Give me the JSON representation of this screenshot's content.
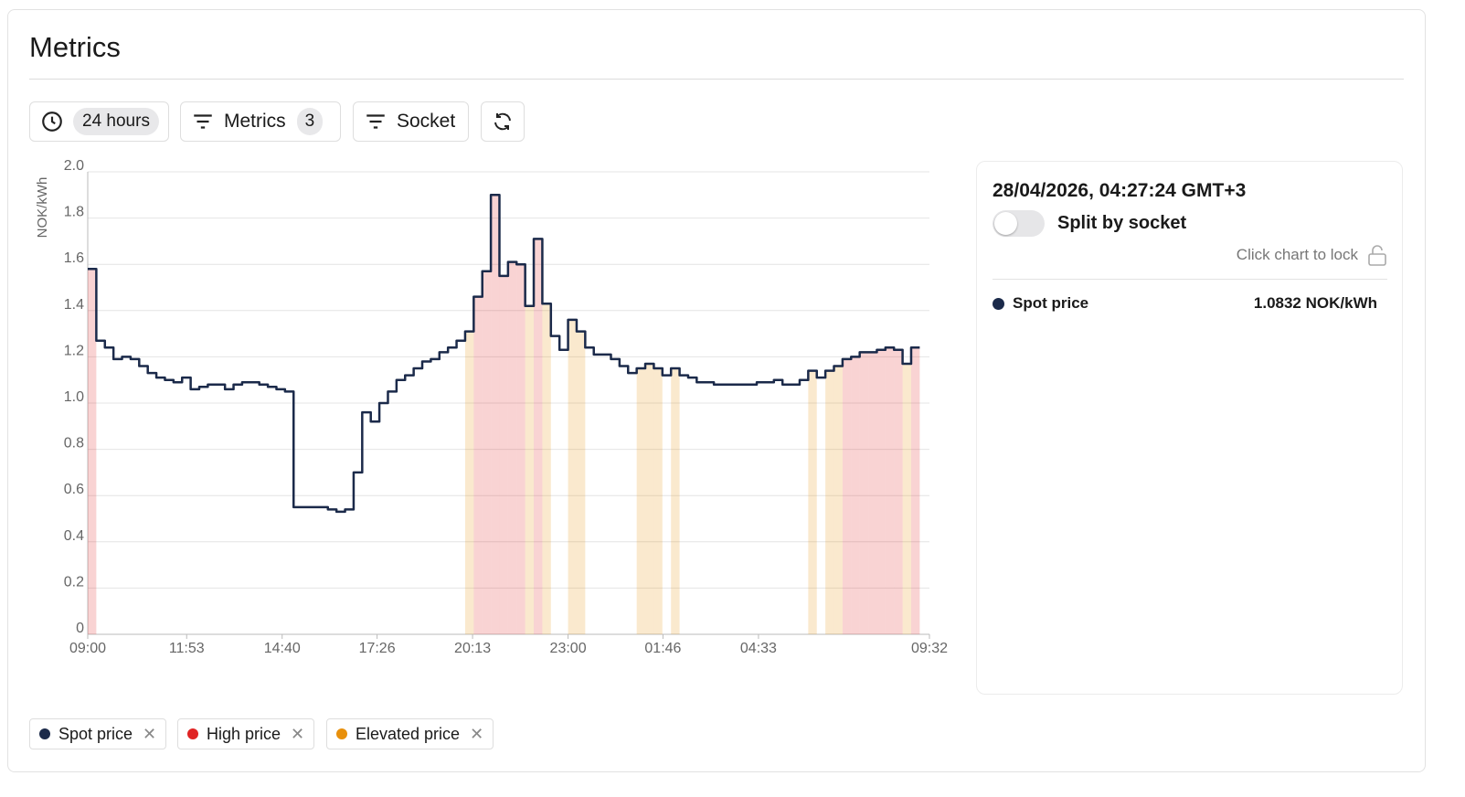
{
  "header": {
    "title": "Metrics"
  },
  "toolbar": {
    "range": "24 hours",
    "metrics": "Metrics",
    "metrics_count": 3,
    "socket": "Socket"
  },
  "chart_data": {
    "type": "line",
    "step": true,
    "y_label": "NOK/kWh",
    "x": [
      "09:00",
      "09:15",
      "09:30",
      "09:45",
      "10:00",
      "10:15",
      "10:30",
      "10:45",
      "11:00",
      "11:15",
      "11:30",
      "11:45",
      "12:00",
      "12:15",
      "12:30",
      "12:45",
      "13:00",
      "13:15",
      "13:30",
      "13:45",
      "14:00",
      "14:15",
      "14:30",
      "14:45",
      "15:00",
      "15:15",
      "15:30",
      "15:45",
      "16:00",
      "16:15",
      "16:30",
      "16:45",
      "17:00",
      "17:15",
      "17:30",
      "17:45",
      "18:00",
      "18:15",
      "18:30",
      "18:45",
      "19:00",
      "19:15",
      "19:30",
      "19:45",
      "20:00",
      "20:15",
      "20:30",
      "20:45",
      "21:00",
      "21:15",
      "21:30",
      "21:45",
      "22:00",
      "22:15",
      "22:30",
      "22:45",
      "23:00",
      "23:15",
      "23:30",
      "23:45",
      "00:00",
      "00:15",
      "00:30",
      "00:45",
      "01:00",
      "01:15",
      "01:30",
      "01:45",
      "02:00",
      "02:15",
      "02:30",
      "02:45",
      "03:00",
      "03:15",
      "03:30",
      "03:45",
      "04:00",
      "04:15",
      "04:30",
      "04:45",
      "05:00",
      "05:15",
      "05:30",
      "05:45",
      "06:00",
      "06:15",
      "06:30",
      "06:45",
      "07:00",
      "07:15",
      "07:30",
      "07:45",
      "08:00",
      "08:15",
      "08:30",
      "08:45",
      "09:00"
    ],
    "xlim": [
      "09:00",
      "09:32"
    ],
    "xticks": [
      "09:00",
      "11:53",
      "14:40",
      "17:26",
      "20:13",
      "23:00",
      "01:46",
      "04:33",
      "09:32"
    ],
    "ylim": [
      0,
      2
    ],
    "yticks": [
      0,
      0.2,
      0.4,
      0.6,
      0.8,
      {
        "value": 1,
        "label": "1.0"
      },
      1.2,
      1.4,
      1.6,
      1.8,
      {
        "value": 2,
        "label": "2.0"
      }
    ],
    "grid": true,
    "series": [
      {
        "name": "Spot price",
        "color": "#1b2a4a",
        "role": "line",
        "values": [
          1.58,
          1.27,
          1.24,
          1.19,
          1.2,
          1.19,
          1.16,
          1.13,
          1.11,
          1.1,
          1.09,
          1.11,
          1.06,
          1.07,
          1.08,
          1.08,
          1.06,
          1.08,
          1.09,
          1.09,
          1.08,
          1.07,
          1.06,
          1.05,
          0.55,
          0.55,
          0.55,
          0.55,
          0.54,
          0.53,
          0.54,
          0.7,
          0.96,
          0.92,
          1.0,
          1.05,
          1.1,
          1.12,
          1.15,
          1.18,
          1.19,
          1.22,
          1.24,
          1.27,
          1.31,
          1.46,
          1.57,
          1.9,
          1.55,
          1.61,
          1.6,
          1.42,
          1.71,
          1.43,
          1.29,
          1.23,
          1.36,
          1.31,
          1.24,
          1.21,
          1.21,
          1.19,
          1.16,
          1.13,
          1.15,
          1.17,
          1.15,
          1.12,
          1.15,
          1.12,
          1.11,
          1.09,
          1.09,
          1.08,
          1.08,
          1.08,
          1.08,
          1.08,
          1.09,
          1.09,
          1.1,
          1.08,
          1.08,
          1.1,
          1.14,
          1.11,
          1.14,
          1.16,
          1.19,
          1.2,
          1.22,
          1.22,
          1.23,
          1.24,
          1.23,
          1.17,
          1.24
        ]
      },
      {
        "name": "High price",
        "color": "#e02424",
        "role": "band",
        "values": [
          1.58,
          null,
          null,
          null,
          null,
          null,
          null,
          null,
          null,
          null,
          null,
          null,
          null,
          null,
          null,
          null,
          null,
          null,
          null,
          null,
          null,
          null,
          null,
          null,
          null,
          null,
          null,
          null,
          null,
          null,
          null,
          null,
          null,
          null,
          null,
          null,
          null,
          null,
          null,
          null,
          null,
          null,
          null,
          null,
          null,
          1.46,
          1.57,
          1.9,
          1.55,
          1.61,
          1.6,
          null,
          1.71,
          null,
          null,
          null,
          null,
          null,
          null,
          null,
          null,
          null,
          null,
          null,
          null,
          null,
          null,
          null,
          null,
          null,
          null,
          null,
          null,
          null,
          null,
          null,
          null,
          null,
          null,
          null,
          null,
          null,
          null,
          null,
          null,
          null,
          null,
          null,
          1.19,
          1.2,
          1.22,
          1.22,
          1.23,
          1.24,
          1.23,
          null,
          1.24
        ]
      },
      {
        "name": "Elevated price",
        "color": "#e8900c",
        "role": "band",
        "values": [
          null,
          null,
          null,
          null,
          null,
          null,
          null,
          null,
          null,
          null,
          null,
          null,
          null,
          null,
          null,
          null,
          null,
          null,
          null,
          null,
          null,
          null,
          null,
          null,
          null,
          null,
          null,
          null,
          null,
          null,
          null,
          null,
          null,
          null,
          null,
          null,
          null,
          null,
          null,
          null,
          null,
          null,
          null,
          null,
          1.31,
          null,
          null,
          null,
          null,
          null,
          null,
          1.42,
          null,
          1.43,
          null,
          null,
          1.36,
          1.31,
          null,
          null,
          null,
          null,
          null,
          null,
          1.15,
          1.17,
          1.15,
          null,
          1.15,
          null,
          null,
          null,
          null,
          null,
          null,
          null,
          null,
          null,
          null,
          null,
          null,
          null,
          null,
          null,
          1.14,
          null,
          1.14,
          1.16,
          null,
          null,
          null,
          null,
          null,
          null,
          null,
          1.17,
          null
        ]
      }
    ]
  },
  "panel": {
    "timestamp": "28/04/2026, 04:27:24 GMT+3",
    "toggle_label": "Split by socket",
    "lock_hint": "Click chart to lock",
    "rows": [
      {
        "name": "Spot price",
        "value": "1.0832 NOK/kWh"
      }
    ]
  }
}
